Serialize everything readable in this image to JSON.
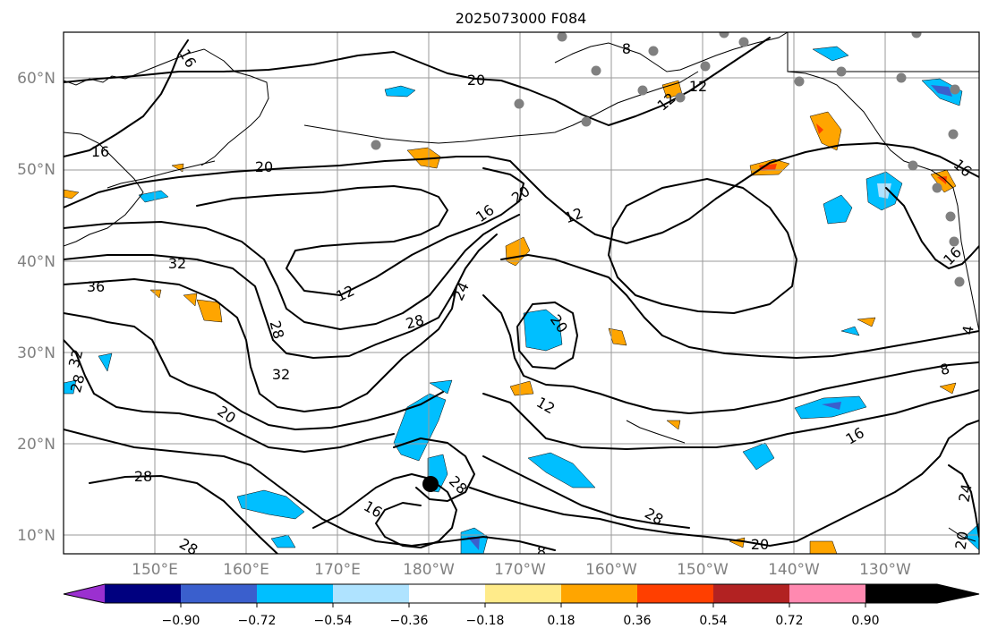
{
  "title": "2025073000 F084",
  "lat_labels": [
    "60°N",
    "50°N",
    "40°N",
    "30°N",
    "20°N",
    "10°N"
  ],
  "lon_labels": [
    "150°E",
    "160°E",
    "170°E",
    "180°W",
    "170°W",
    "160°W",
    "150°W",
    "140°W",
    "130°W"
  ],
  "colorbar": {
    "tick_labels": [
      "−0.90",
      "−0.72",
      "−0.54",
      "−0.36",
      "−0.18",
      "0.18",
      "0.36",
      "0.54",
      "0.72",
      "0.90"
    ],
    "colors": [
      "#9b30d0",
      "#00007f",
      "#3a5fcd",
      "#00bfff",
      "#afe3ff",
      "#ffffff",
      "#ffeb8a",
      "#ffa500",
      "#ff3f00",
      "#b22222",
      "#ff89b0"
    ]
  },
  "contour_labels": [
    "16",
    "8",
    "12",
    "20",
    "16",
    "20",
    "16",
    "20",
    "16",
    "12",
    "32",
    "36",
    "12",
    "28",
    "28",
    "24",
    "20",
    "32",
    "32",
    "28",
    "20",
    "12",
    "8",
    "16",
    "28",
    "16",
    "28",
    "28",
    "28",
    "20",
    "24",
    "20",
    "8",
    "4",
    "16",
    "12"
  ]
}
